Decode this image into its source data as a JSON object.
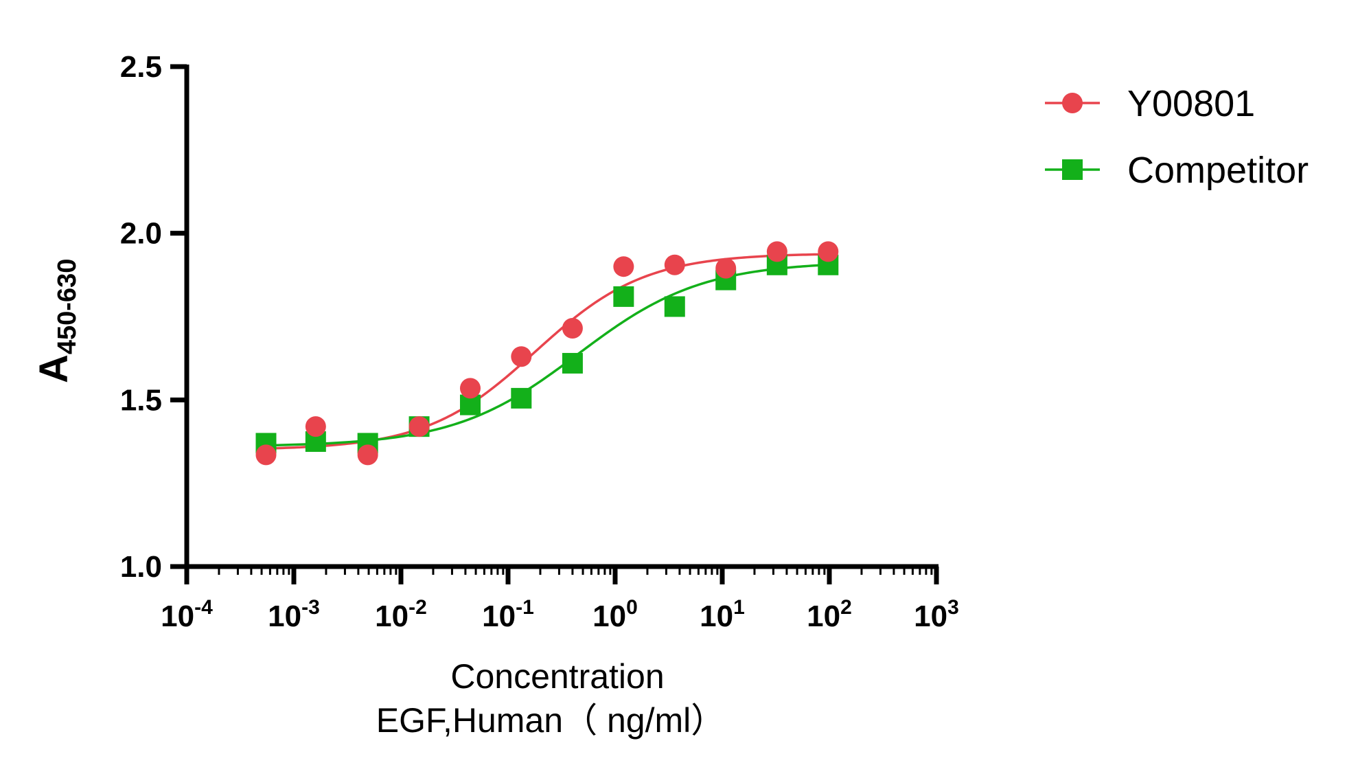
{
  "chart_data": {
    "type": "scatter",
    "title": "",
    "xlabel": [
      "Concentration",
      "EGF,Human（ ng/ml）"
    ],
    "ylabel": {
      "main": "A",
      "sub": "450-630"
    },
    "x_scale": "log10",
    "xlim": [
      0.0001,
      1000
    ],
    "ylim": [
      1.0,
      2.5
    ],
    "x_ticks": [
      {
        "base": "10",
        "exp": "-4",
        "value": 0.0001
      },
      {
        "base": "10",
        "exp": "-3",
        "value": 0.001
      },
      {
        "base": "10",
        "exp": "-2",
        "value": 0.01
      },
      {
        "base": "10",
        "exp": "-1",
        "value": 0.1
      },
      {
        "base": "10",
        "exp": "0",
        "value": 1
      },
      {
        "base": "10",
        "exp": "1",
        "value": 10
      },
      {
        "base": "10",
        "exp": "2",
        "value": 100
      },
      {
        "base": "10",
        "exp": "3",
        "value": 1000
      }
    ],
    "y_ticks": [
      "1.0",
      "1.5",
      "2.0",
      "2.5"
    ],
    "grid": false,
    "legend_position": "top-right",
    "series": [
      {
        "name": "Y00801",
        "color": "#e8444d",
        "marker": "circle",
        "x": [
          0.00055,
          0.0016,
          0.0049,
          0.0148,
          0.0444,
          0.133,
          0.4,
          1.2,
          3.6,
          10.8,
          32.5,
          97.5
        ],
        "y": [
          1.335,
          1.42,
          1.335,
          1.42,
          1.535,
          1.63,
          1.715,
          1.9,
          1.905,
          1.895,
          1.945,
          1.945
        ],
        "fit": {
          "bottom": 1.35,
          "top": 1.94,
          "ec50": 0.18,
          "hill": 0.85
        }
      },
      {
        "name": "Competitor",
        "color": "#13b01a",
        "marker": "square",
        "x": [
          0.00055,
          0.0016,
          0.0049,
          0.0148,
          0.0444,
          0.133,
          0.4,
          1.2,
          3.6,
          10.8,
          32.5,
          97.5
        ],
        "y": [
          1.37,
          1.375,
          1.37,
          1.42,
          1.485,
          1.505,
          1.61,
          1.81,
          1.78,
          1.86,
          1.905,
          1.905
        ],
        "fit": {
          "bottom": 1.36,
          "top": 1.915,
          "ec50": 0.45,
          "hill": 0.75
        }
      }
    ]
  }
}
